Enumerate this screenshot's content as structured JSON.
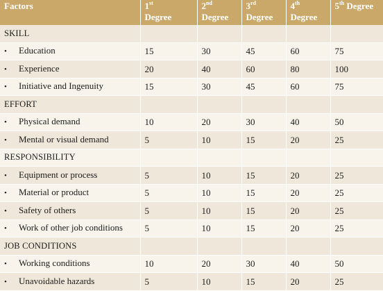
{
  "header": {
    "factors": "Factors",
    "degrees": [
      {
        "num": "1",
        "sup": "st",
        "word": "Degree"
      },
      {
        "num": "2",
        "sup": "nd",
        "word": "Degree"
      },
      {
        "num": "3",
        "sup": "rd",
        "word": "Degree"
      },
      {
        "num": "4",
        "sup": "th",
        "word": "Degree"
      },
      {
        "num": "5",
        "sup": "th",
        "word": "Degree"
      }
    ]
  },
  "bullet": "•",
  "rows": [
    {
      "type": "section",
      "label": "SKILL"
    },
    {
      "type": "item",
      "label": "Education",
      "values": [
        "15",
        "30",
        "45",
        "60",
        "75"
      ]
    },
    {
      "type": "item",
      "label": "Experience",
      "values": [
        "20",
        "40",
        "60",
        "80",
        "100"
      ]
    },
    {
      "type": "item",
      "label": "Initiative and Ingenuity",
      "values": [
        "15",
        "30",
        "45",
        "60",
        "75"
      ]
    },
    {
      "type": "section",
      "label": "EFFORT"
    },
    {
      "type": "item",
      "label": "Physical demand",
      "values": [
        "10",
        "20",
        "30",
        "40",
        "50"
      ]
    },
    {
      "type": "item",
      "label": "Mental or visual demand",
      "values": [
        "5",
        "10",
        "15",
        "20",
        "25"
      ]
    },
    {
      "type": "section",
      "label": "RESPONSIBILITY"
    },
    {
      "type": "item",
      "label": "Equipment or process",
      "values": [
        "5",
        "10",
        "15",
        "20",
        "25"
      ]
    },
    {
      "type": "item",
      "label": "Material or product",
      "values": [
        "5",
        "10",
        "15",
        "20",
        "25"
      ]
    },
    {
      "type": "item",
      "label": "Safety of others",
      "values": [
        "5",
        "10",
        "15",
        "20",
        "25"
      ]
    },
    {
      "type": "item",
      "label": "Work of other job conditions",
      "values": [
        "5",
        "10",
        "15",
        "20",
        "25"
      ]
    },
    {
      "type": "section",
      "label": "JOB CONDITIONS"
    },
    {
      "type": "item",
      "label": "Working conditions",
      "values": [
        "10",
        "20",
        "30",
        "40",
        "50"
      ]
    },
    {
      "type": "item",
      "label": "Unavoidable hazards",
      "values": [
        "5",
        "10",
        "15",
        "20",
        "25"
      ]
    }
  ]
}
